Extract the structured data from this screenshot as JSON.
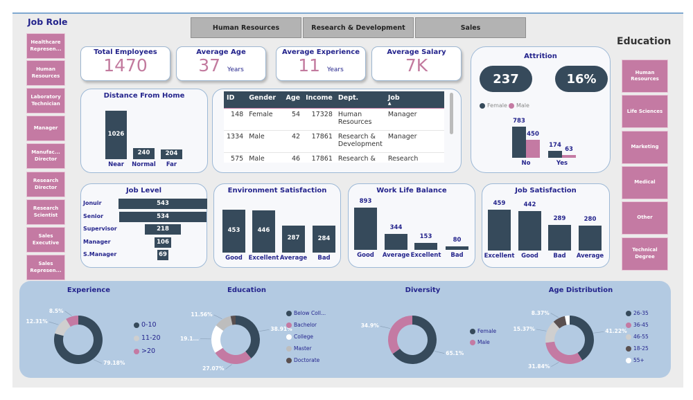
{
  "sidebar_left": {
    "title": "Job Role",
    "items": [
      "Healthcare Represen...",
      "Human Resources",
      "Laboratory Technician",
      "Manager",
      "Manufac... Director",
      "Research Director",
      "Research Scientist",
      "Sales Executive",
      "Sales Represen..."
    ]
  },
  "department_tabs": [
    "Human Resources",
    "Research & Development",
    "Sales"
  ],
  "kpis": {
    "total_employees": {
      "label": "Total Employees",
      "value": "1470"
    },
    "average_age": {
      "label": "Average Age",
      "value": "37",
      "unit": "Years"
    },
    "average_experience": {
      "label": "Average Experience",
      "value": "11",
      "unit": "Years"
    },
    "average_salary": {
      "label": "Average Salary",
      "value": "7K"
    }
  },
  "sidebar_right": {
    "title": "Education",
    "items": [
      "Human Resources",
      "Life Sciences",
      "Marketing",
      "Medical",
      "Other",
      "Technical Degree"
    ]
  },
  "table": {
    "columns": [
      "ID",
      "Gender",
      "Age",
      "Income",
      "Dept.",
      "Job"
    ],
    "sort_indicator": "▲",
    "rows": [
      [
        "148",
        "Female",
        "54",
        "17328",
        "Human Resources",
        "Manager"
      ],
      [
        "1334",
        "Male",
        "42",
        "17861",
        "Research & Development",
        "Manager"
      ],
      [
        "575",
        "Male",
        "46",
        "17861",
        "Research &",
        "Research Director"
      ]
    ]
  },
  "attrition": {
    "title": "Attrition",
    "count": "237",
    "rate": "16%",
    "legend": [
      "Female",
      "Male"
    ]
  },
  "colors": {
    "navy": "#364a5b",
    "pink": "#c47aa3",
    "title": "#24248c",
    "panel": "#b3cae2"
  },
  "chart_data": [
    {
      "id": "distance",
      "type": "bar",
      "title": "Distance From Home",
      "categories": [
        "Near",
        "Normal",
        "Far"
      ],
      "values": [
        1026,
        240,
        204
      ]
    },
    {
      "id": "attrition",
      "type": "bar",
      "categories": [
        "No",
        "Yes"
      ],
      "series": [
        {
          "name": "Female",
          "values": [
            783,
            174
          ]
        },
        {
          "name": "Male",
          "values": [
            450,
            63
          ]
        }
      ]
    },
    {
      "id": "joblevel",
      "type": "bar",
      "orientation": "horizontal-funnel",
      "title": "Job Level",
      "categories": [
        "Jonuir",
        "Senior",
        "Supervisor",
        "Manager",
        "S.Manager"
      ],
      "values": [
        543,
        534,
        218,
        106,
        69
      ]
    },
    {
      "id": "env",
      "type": "bar",
      "title": "Environment Satisfaction",
      "categories": [
        "Good",
        "Excellent",
        "Average",
        "Bad"
      ],
      "values": [
        453,
        446,
        287,
        284
      ]
    },
    {
      "id": "wlb",
      "type": "bar",
      "title": "Work Life Balance",
      "categories": [
        "Good",
        "Average",
        "Excellent",
        "Bad"
      ],
      "values": [
        893,
        344,
        153,
        80
      ]
    },
    {
      "id": "jobsat",
      "type": "bar",
      "title": "Job Satisfaction",
      "categories": [
        "Excellent",
        "Good",
        "Bad",
        "Average"
      ],
      "values": [
        459,
        442,
        289,
        280
      ]
    },
    {
      "id": "experience",
      "type": "pie",
      "donut": true,
      "title": "Experience",
      "categories": [
        "0-10",
        "11-20",
        ">20"
      ],
      "values": [
        79.18,
        12.31,
        8.5
      ],
      "labels": [
        "79.18%",
        "12.31%",
        "8.5%"
      ],
      "colors": [
        "#364a5b",
        "#cfcfcf",
        "#c47aa3"
      ]
    },
    {
      "id": "education",
      "type": "pie",
      "donut": true,
      "title": "Education",
      "categories": [
        "Below Coll...",
        "Bachelor",
        "College",
        "Master",
        "Doctorate"
      ],
      "values": [
        38.91,
        27.07,
        19.1,
        11.56,
        3.36
      ],
      "labels": [
        "38.91%",
        "27.07%",
        "19.1...",
        "11.56%",
        ""
      ],
      "colors": [
        "#364a5b",
        "#c47aa3",
        "#ffffff",
        "#bdbdbd",
        "#5a5050"
      ]
    },
    {
      "id": "diversity",
      "type": "pie",
      "donut": true,
      "title": "Diversity",
      "categories": [
        "Female",
        "Male"
      ],
      "values": [
        65.1,
        34.9
      ],
      "labels": [
        "65.1%",
        "34.9%"
      ],
      "colors": [
        "#364a5b",
        "#c47aa3"
      ]
    },
    {
      "id": "age",
      "type": "pie",
      "donut": true,
      "title": "Age Distribution",
      "categories": [
        "26-35",
        "36-45",
        "46-55",
        "18-25",
        "55+"
      ],
      "values": [
        41.22,
        31.84,
        15.37,
        8.37,
        3.2
      ],
      "labels": [
        "41.22%",
        "31.84%",
        "15.37%",
        "8.37%",
        ""
      ],
      "colors": [
        "#364a5b",
        "#c47aa3",
        "#cfcfcf",
        "#5a5050",
        "#ffffff"
      ]
    }
  ]
}
